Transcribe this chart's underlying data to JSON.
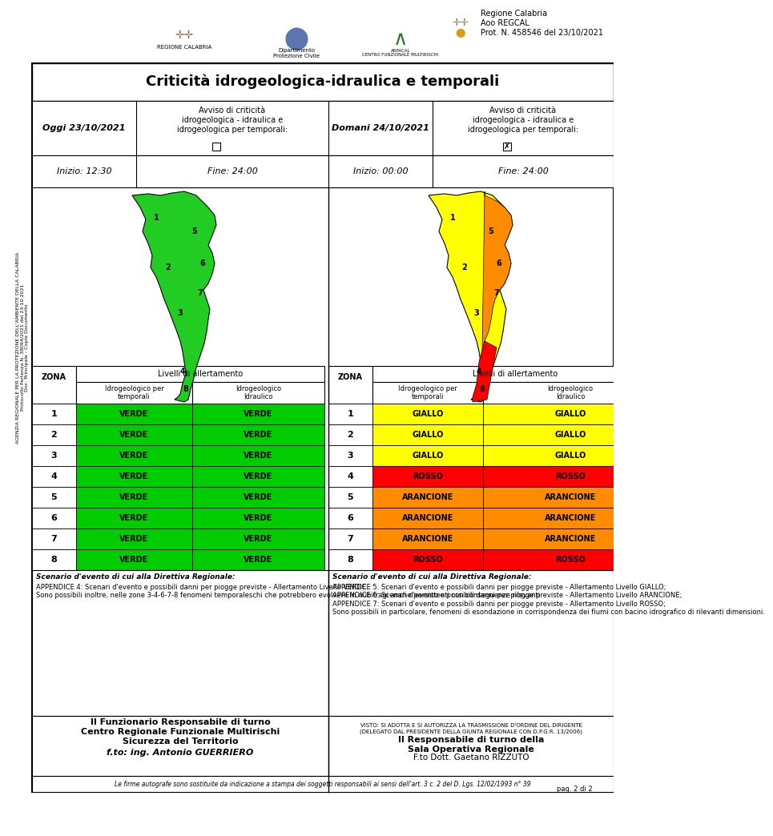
{
  "title": "Criticità idrogeologica-idraulica e temporali",
  "header_right": "Regione Calabria\nAoo REGCAL\nProt. N. 458546 del 23/10/2021",
  "today_date": "Oggi 23/10/2021",
  "tomorrow_date": "Domani 24/10/2021",
  "alert_label": "Avviso di criticità\nidrogeologica - idraulica e\nidrogeologica per temporali:",
  "today_start": "Inizio: 12:30",
  "today_end": "Fine: 24:00",
  "tomorrow_start": "Inizio: 00:00",
  "tomorrow_end": "Fine: 24:00",
  "zone_header": "ZONA",
  "levels_header": "Livelli di allertamento",
  "col1_header": "Idrogeologico per\ntemporali",
  "col2_header": "Idrogeologico\nIdraulico",
  "zones": [
    1,
    2,
    3,
    4,
    5,
    6,
    7,
    8
  ],
  "today_col1": [
    "VERDE",
    "VERDE",
    "VERDE",
    "VERDE",
    "VERDE",
    "VERDE",
    "VERDE",
    "VERDE"
  ],
  "today_col2": [
    "VERDE",
    "VERDE",
    "VERDE",
    "VERDE",
    "VERDE",
    "VERDE",
    "VERDE",
    "VERDE"
  ],
  "tomorrow_col1": [
    "GIALLO",
    "GIALLO",
    "GIALLO",
    "ROSSO",
    "ARANCIONE",
    "ARANCIONE",
    "ARANCIONE",
    "ROSSO"
  ],
  "tomorrow_col2": [
    "GIALLO",
    "GIALLO",
    "GIALLO",
    "ROSSO",
    "ARANCIONE",
    "ARANCIONE",
    "ARANCIONE",
    "ROSSO"
  ],
  "color_map": {
    "VERDE": "#00cc00",
    "GIALLO": "#ffff00",
    "ARANCIONE": "#ff8c00",
    "ROSSO": "#ff0000"
  },
  "scenario_today_title": "Scenario d'evento di cui alla Direttiva Regionale:",
  "scenario_today_text": "APPENDICE 4: Scenari d'evento e possibili danni per piogge previste - Allertamento Livello VERDE.\nSono possibili inoltre, nelle zone 3-4-6-7-8 fenomeni temporaleschi che potrebbero evolvere in nubifragi anche persistenti con conseguenze rilevanti",
  "scenario_tomorrow_title": "Scenario d'evento di cui alla Direttiva Regionale:",
  "scenario_tomorrow_text": "APPENDICE 5: Scenari d'evento e possibili danni per piogge previste - Allertamento Livello GIALLO;\nAPPENDICE 6: Scenari d'evento e possibili danni per piogge previste - Allertamento Livello ARANCIONE;\nAPPENDICE 7: Scenari d'evento e possibili danni per piogge previste - Allertamento Livello ROSSO;\nSono possibili in particolare, fenomeni di esondazione in corrispondenza dei fiumi con bacino idrografico di rilevanti dimensioni.",
  "footer_left_bold": "Il Funzionario Responsabile di turno\nCentro Regionale Funzionale Multirischi\nSicurezza del Territorio",
  "footer_left_italic": "f.to: ing. Antonio GUERRIERO",
  "footer_right_small": "VISTO: SI ADOTTA E SI AUTORIZZA LA TRASMISSIONE D'ORDINE DEL DIRIGENTE\n(DELEGATO DAL PRESIDENTE DELLA GIUNTA REGIONALE CON D.P.G.R. 13/2006)",
  "footer_right_bold": "Il Responsabile di turno della\nSala Operativa Regionale",
  "footer_right_name": "F.to Dott. Gaetano RIZZUTO",
  "footer_bottom": "Le firme autografe sono sostituite da indicazione a stampa dei soggetti responsabili ai sensi dell'art. 3 c. 2 del D. Lgs. 12/02/1993 n° 39",
  "page_num": "pag. 2 di 2",
  "bg_color": "#ffffff",
  "border_color": "#000000",
  "table_header_bg": "#ffffff",
  "side_text": "AGENZIA REGIONALE PER LA PROTEZIONE DELL'AMBIENTE DELLA CALABRIA\nProtocollo Partenza N. 38094/2021 del 23-10-2021\nDoc. Principale - Copia Documento"
}
